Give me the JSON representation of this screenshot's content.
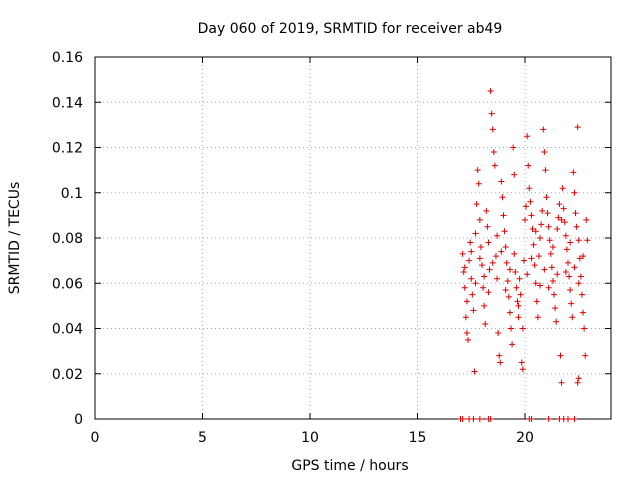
{
  "chart_data": {
    "type": "scatter",
    "title": "Day 060 of 2019, SRMTID for receiver ab49",
    "xlabel": "GPS time / hours",
    "ylabel": "SRMTID / TECUs",
    "xlim": [
      0,
      24
    ],
    "ylim": [
      0,
      0.16
    ],
    "grid": true,
    "x_ticks": [
      0,
      5,
      10,
      15,
      20
    ],
    "x_tick_labels": [
      "0",
      "5",
      "10",
      "15",
      "20"
    ],
    "y_ticks": [
      0,
      0.02,
      0.04,
      0.06,
      0.08,
      0.1,
      0.12,
      0.14,
      0.16
    ],
    "y_tick_labels": [
      "0",
      "0.02",
      "0.04",
      "0.06",
      "0.08",
      "0.1",
      "0.12",
      "0.14",
      "0.16"
    ],
    "marker": "+",
    "series": [
      {
        "name": "SRMTID",
        "color": "#dd0000",
        "points": [
          [
            17.0,
            0.0
          ],
          [
            17.1,
            0.0
          ],
          [
            17.4,
            0.0
          ],
          [
            17.6,
            0.0
          ],
          [
            17.9,
            0.0
          ],
          [
            18.3,
            0.0
          ],
          [
            18.4,
            0.0
          ],
          [
            20.2,
            0.0
          ],
          [
            20.3,
            0.0
          ],
          [
            21.1,
            0.0
          ],
          [
            21.6,
            0.0
          ],
          [
            21.8,
            0.0
          ],
          [
            22.0,
            0.0
          ],
          [
            22.3,
            0.0
          ],
          [
            17.1,
            0.073
          ],
          [
            17.15,
            0.065
          ],
          [
            17.2,
            0.058
          ],
          [
            17.25,
            0.045
          ],
          [
            17.3,
            0.038
          ],
          [
            17.35,
            0.035
          ],
          [
            17.4,
            0.07
          ],
          [
            17.45,
            0.078
          ],
          [
            17.5,
            0.062
          ],
          [
            17.55,
            0.055
          ],
          [
            17.6,
            0.048
          ],
          [
            17.65,
            0.021
          ],
          [
            17.7,
            0.082
          ],
          [
            17.75,
            0.095
          ],
          [
            17.8,
            0.11
          ],
          [
            17.85,
            0.104
          ],
          [
            17.9,
            0.088
          ],
          [
            17.95,
            0.076
          ],
          [
            18.0,
            0.068
          ],
          [
            18.05,
            0.058
          ],
          [
            18.1,
            0.05
          ],
          [
            18.15,
            0.042
          ],
          [
            18.2,
            0.092
          ],
          [
            18.25,
            0.085
          ],
          [
            18.3,
            0.078
          ],
          [
            18.35,
            0.066
          ],
          [
            18.4,
            0.145
          ],
          [
            18.45,
            0.135
          ],
          [
            18.5,
            0.128
          ],
          [
            18.55,
            0.118
          ],
          [
            18.6,
            0.112
          ],
          [
            18.65,
            0.072
          ],
          [
            18.7,
            0.062
          ],
          [
            18.75,
            0.038
          ],
          [
            18.8,
            0.028
          ],
          [
            18.85,
            0.025
          ],
          [
            18.9,
            0.105
          ],
          [
            18.95,
            0.098
          ],
          [
            19.0,
            0.09
          ],
          [
            19.05,
            0.083
          ],
          [
            19.1,
            0.076
          ],
          [
            19.15,
            0.069
          ],
          [
            19.2,
            0.061
          ],
          [
            19.25,
            0.054
          ],
          [
            19.3,
            0.047
          ],
          [
            19.35,
            0.04
          ],
          [
            19.4,
            0.033
          ],
          [
            19.45,
            0.12
          ],
          [
            19.5,
            0.108
          ],
          [
            19.55,
            0.065
          ],
          [
            19.6,
            0.058
          ],
          [
            19.65,
            0.052
          ],
          [
            19.7,
            0.045
          ],
          [
            19.75,
            0.062
          ],
          [
            19.8,
            0.055
          ],
          [
            19.85,
            0.025
          ],
          [
            19.9,
            0.022
          ],
          [
            19.95,
            0.07
          ],
          [
            20.0,
            0.088
          ],
          [
            20.05,
            0.094
          ],
          [
            20.1,
            0.125
          ],
          [
            20.15,
            0.112
          ],
          [
            20.2,
            0.102
          ],
          [
            20.25,
            0.096
          ],
          [
            20.3,
            0.09
          ],
          [
            20.35,
            0.084
          ],
          [
            20.4,
            0.077
          ],
          [
            20.45,
            0.068
          ],
          [
            20.5,
            0.06
          ],
          [
            20.55,
            0.052
          ],
          [
            20.6,
            0.045
          ],
          [
            20.65,
            0.072
          ],
          [
            20.7,
            0.08
          ],
          [
            20.75,
            0.086
          ],
          [
            20.8,
            0.092
          ],
          [
            20.85,
            0.128
          ],
          [
            20.9,
            0.118
          ],
          [
            20.95,
            0.11
          ],
          [
            21.0,
            0.098
          ],
          [
            21.05,
            0.091
          ],
          [
            21.1,
            0.085
          ],
          [
            21.15,
            0.079
          ],
          [
            21.2,
            0.073
          ],
          [
            21.25,
            0.067
          ],
          [
            21.3,
            0.061
          ],
          [
            21.35,
            0.055
          ],
          [
            21.4,
            0.049
          ],
          [
            21.45,
            0.043
          ],
          [
            21.5,
            0.084
          ],
          [
            21.55,
            0.089
          ],
          [
            21.6,
            0.095
          ],
          [
            21.65,
            0.028
          ],
          [
            21.7,
            0.016
          ],
          [
            21.75,
            0.102
          ],
          [
            21.8,
            0.093
          ],
          [
            21.85,
            0.087
          ],
          [
            21.9,
            0.081
          ],
          [
            21.95,
            0.075
          ],
          [
            22.0,
            0.069
          ],
          [
            22.05,
            0.063
          ],
          [
            22.1,
            0.057
          ],
          [
            22.15,
            0.051
          ],
          [
            22.2,
            0.045
          ],
          [
            22.25,
            0.109
          ],
          [
            22.3,
            0.1
          ],
          [
            22.35,
            0.091
          ],
          [
            22.4,
            0.085
          ],
          [
            22.45,
            0.129
          ],
          [
            22.5,
            0.079
          ],
          [
            22.55,
            0.071
          ],
          [
            22.6,
            0.063
          ],
          [
            22.65,
            0.055
          ],
          [
            22.7,
            0.047
          ],
          [
            22.75,
            0.04
          ],
          [
            22.8,
            0.028
          ],
          [
            22.85,
            0.088
          ],
          [
            22.5,
            0.018
          ],
          [
            22.45,
            0.016
          ],
          [
            17.2,
            0.067
          ],
          [
            17.3,
            0.052
          ],
          [
            17.5,
            0.074
          ],
          [
            17.7,
            0.06
          ],
          [
            17.9,
            0.071
          ],
          [
            18.1,
            0.063
          ],
          [
            18.3,
            0.056
          ],
          [
            18.5,
            0.069
          ],
          [
            18.7,
            0.081
          ],
          [
            18.9,
            0.074
          ],
          [
            19.1,
            0.057
          ],
          [
            19.3,
            0.066
          ],
          [
            19.5,
            0.073
          ],
          [
            19.7,
            0.05
          ],
          [
            19.9,
            0.04
          ],
          [
            20.1,
            0.064
          ],
          [
            20.3,
            0.071
          ],
          [
            20.5,
            0.083
          ],
          [
            20.7,
            0.059
          ],
          [
            20.9,
            0.066
          ],
          [
            21.1,
            0.058
          ],
          [
            21.3,
            0.076
          ],
          [
            21.5,
            0.064
          ],
          [
            21.7,
            0.088
          ],
          [
            21.9,
            0.065
          ],
          [
            22.1,
            0.078
          ],
          [
            22.3,
            0.067
          ],
          [
            22.5,
            0.06
          ],
          [
            22.7,
            0.072
          ],
          [
            22.9,
            0.079
          ]
        ]
      }
    ]
  }
}
